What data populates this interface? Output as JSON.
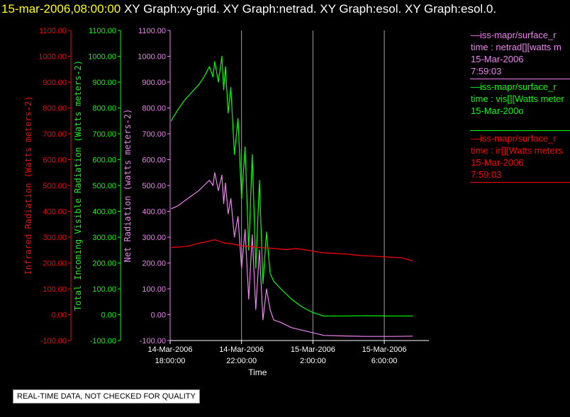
{
  "header": {
    "timestamp": "15-mar-2006,08:00:00",
    "titles": [
      "XY Graph:xy-grid.",
      "XY Graph:netrad.",
      "XY Graph:esol.",
      "XY Graph:esol.0."
    ]
  },
  "colors": {
    "background": "#000000",
    "netrad": "#ee82ee",
    "vis": "#00ff00",
    "ir": "#ff0000",
    "grid": "#a0a0a0",
    "axis": "#ffffff",
    "header_time": "#ffff00"
  },
  "legend": [
    {
      "lines": [
        "—iss-mapr/surface_r",
        "time : netrad[][watts m",
        "15-Mar-2006",
        "7:59:03"
      ],
      "color": "#ee82ee"
    },
    {
      "lines": [
        "—iss-mapr/surface_r",
        "time : vis[][Watts meter",
        "15-Mar-200o"
      ],
      "color": "#00ff00"
    },
    {
      "lines": [
        "—iss-mapr/surface_r",
        "time : ir[][Watts meters",
        "15-Mar-2006",
        "7:59:03"
      ],
      "color": "#ff0000"
    }
  ],
  "notice": "REAL-TIME DATA, NOT CHECKED FOR QUALITY",
  "chart_data": {
    "type": "line",
    "xlabel": "Time",
    "x_ticks": [
      {
        "h": 18,
        "l1": "14-Mar-2006",
        "l2": "18:00:00"
      },
      {
        "h": 22,
        "l1": "14-Mar-2006",
        "l2": "22:00:00"
      },
      {
        "h": 26,
        "l1": "15-Mar-2006",
        "l2": "2:00:00"
      },
      {
        "h": 30,
        "l1": "15-Mar-2006",
        "l2": "6:00:00"
      }
    ],
    "xlim_hours": [
      18,
      32
    ],
    "vertical_grid_hours": [
      22,
      26,
      30
    ],
    "ylim": [
      -100,
      1100
    ],
    "y_ticks": [
      "-100.00",
      "0.00",
      "100.00",
      "200.00",
      "300.00",
      "400.00",
      "500.00",
      "600.00",
      "700.00",
      "800.00",
      "900.00",
      "1000.00",
      "1100.00"
    ],
    "y_axes": [
      {
        "label": "Infrared Radiation (Watts meters-2)",
        "color": "#ff0000"
      },
      {
        "label": "Total Incoming Visible Radiation (Watts meters-2)",
        "color": "#00ff00"
      },
      {
        "label": "Net Radiation (watts meters-2)",
        "color": "#ee82ee"
      }
    ],
    "series": [
      {
        "key": "vis",
        "color": "#00ff00",
        "points": [
          [
            18.05,
            750
          ],
          [
            18.4,
            790
          ],
          [
            18.8,
            830
          ],
          [
            19.2,
            860
          ],
          [
            19.6,
            890
          ],
          [
            19.9,
            920
          ],
          [
            20.2,
            960
          ],
          [
            20.4,
            920
          ],
          [
            20.5,
            980
          ],
          [
            20.7,
            900
          ],
          [
            20.9,
            1000
          ],
          [
            21.0,
            870
          ],
          [
            21.1,
            960
          ],
          [
            21.25,
            780
          ],
          [
            21.4,
            880
          ],
          [
            21.6,
            620
          ],
          [
            21.8,
            760
          ],
          [
            22.0,
            450
          ],
          [
            22.2,
            650
          ],
          [
            22.4,
            250
          ],
          [
            22.6,
            620
          ],
          [
            22.8,
            180
          ],
          [
            23.0,
            520
          ],
          [
            23.2,
            120
          ],
          [
            23.4,
            320
          ],
          [
            23.6,
            160
          ],
          [
            23.8,
            130
          ],
          [
            24.2,
            100
          ],
          [
            24.8,
            60
          ],
          [
            25.4,
            30
          ],
          [
            26.0,
            8
          ],
          [
            26.6,
            -5
          ],
          [
            27.5,
            -5
          ],
          [
            29.0,
            -4
          ],
          [
            30.5,
            -5
          ],
          [
            31.6,
            -5
          ]
        ]
      },
      {
        "key": "netrad",
        "color": "#ee82ee",
        "points": [
          [
            18.05,
            410
          ],
          [
            18.4,
            420
          ],
          [
            18.8,
            440
          ],
          [
            19.2,
            460
          ],
          [
            19.6,
            480
          ],
          [
            19.9,
            500
          ],
          [
            20.2,
            520
          ],
          [
            20.4,
            500
          ],
          [
            20.5,
            550
          ],
          [
            20.7,
            480
          ],
          [
            20.9,
            540
          ],
          [
            21.0,
            430
          ],
          [
            21.1,
            510
          ],
          [
            21.25,
            390
          ],
          [
            21.4,
            450
          ],
          [
            21.6,
            300
          ],
          [
            21.8,
            380
          ],
          [
            22.0,
            180
          ],
          [
            22.2,
            330
          ],
          [
            22.4,
            60
          ],
          [
            22.6,
            310
          ],
          [
            22.8,
            20
          ],
          [
            23.0,
            250
          ],
          [
            23.2,
            -20
          ],
          [
            23.4,
            100
          ],
          [
            23.6,
            20
          ],
          [
            23.8,
            -20
          ],
          [
            24.2,
            -30
          ],
          [
            24.8,
            -50
          ],
          [
            25.4,
            -60
          ],
          [
            26.0,
            -70
          ],
          [
            26.6,
            -80
          ],
          [
            27.5,
            -82
          ],
          [
            29.0,
            -84
          ],
          [
            30.5,
            -84
          ],
          [
            31.6,
            -83
          ]
        ]
      },
      {
        "key": "ir",
        "color": "#ff0000",
        "points": [
          [
            18.05,
            260
          ],
          [
            18.5,
            262
          ],
          [
            19.0,
            265
          ],
          [
            19.5,
            275
          ],
          [
            20.0,
            282
          ],
          [
            20.5,
            290
          ],
          [
            21.0,
            278
          ],
          [
            21.5,
            274
          ],
          [
            22.0,
            266
          ],
          [
            22.5,
            264
          ],
          [
            23.0,
            260
          ],
          [
            23.5,
            258
          ],
          [
            24.0,
            255
          ],
          [
            24.5,
            252
          ],
          [
            25.0,
            256
          ],
          [
            25.5,
            252
          ],
          [
            26.0,
            246
          ],
          [
            26.5,
            240
          ],
          [
            27.0,
            238
          ],
          [
            27.5,
            236
          ],
          [
            28.0,
            234
          ],
          [
            28.5,
            230
          ],
          [
            29.0,
            228
          ],
          [
            29.5,
            226
          ],
          [
            30.0,
            224
          ],
          [
            30.5,
            222
          ],
          [
            31.0,
            220
          ],
          [
            31.6,
            208
          ]
        ]
      }
    ]
  }
}
